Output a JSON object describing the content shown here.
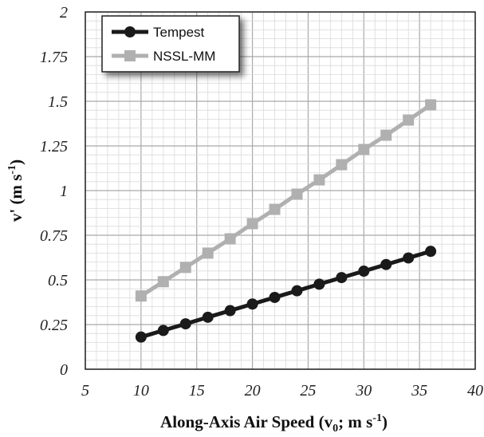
{
  "chart_data": {
    "type": "line",
    "title": "",
    "xlabel": {
      "main": "Along-Axis Air Speed (v",
      "sub": "0",
      "mid": "; m s",
      "sup": "-1",
      "end": ")"
    },
    "ylabel": {
      "main": "v' (m s",
      "sup": "-1",
      "end": ")"
    },
    "xlim": [
      5,
      40
    ],
    "ylim": [
      0,
      2
    ],
    "x_ticks": [
      "5",
      "10",
      "15",
      "20",
      "25",
      "30",
      "35",
      "40"
    ],
    "y_ticks": [
      "0",
      "0.25",
      "0.5",
      "0.75",
      "1",
      "1.25",
      "1.5",
      "1.75",
      "2"
    ],
    "grid": true,
    "legend_position": "top-left",
    "x": [
      10,
      12,
      14,
      16,
      18,
      20,
      22,
      24,
      26,
      28,
      30,
      32,
      34,
      36
    ],
    "series": [
      {
        "name": "Tempest",
        "color": "#1a1a1a",
        "marker": "circle",
        "values": [
          0.18,
          0.217,
          0.254,
          0.291,
          0.328,
          0.365,
          0.402,
          0.439,
          0.476,
          0.513,
          0.549,
          0.586,
          0.623,
          0.66
        ]
      },
      {
        "name": "NSSL-MM",
        "color": "#b0b0b0",
        "marker": "square",
        "values": [
          0.41,
          0.49,
          0.57,
          0.65,
          0.73,
          0.815,
          0.895,
          0.98,
          1.06,
          1.145,
          1.23,
          1.31,
          1.395,
          1.48
        ]
      }
    ]
  }
}
